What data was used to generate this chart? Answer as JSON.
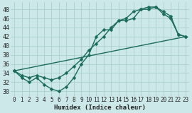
{
  "xlabel": "Humidex (Indice chaleur)",
  "background_color": "#cce8e8",
  "grid_color": "#aacfcf",
  "line_color": "#1a6b5a",
  "xlim": [
    -0.5,
    23.5
  ],
  "ylim": [
    29.0,
    49.5
  ],
  "yticks": [
    30,
    32,
    34,
    36,
    38,
    40,
    42,
    44,
    46,
    48
  ],
  "xticks": [
    0,
    1,
    2,
    3,
    4,
    5,
    6,
    7,
    8,
    9,
    10,
    11,
    12,
    13,
    14,
    15,
    16,
    17,
    18,
    19,
    20,
    21,
    22,
    23
  ],
  "series1_y": [
    34.5,
    33.0,
    32.0,
    33.0,
    31.5,
    30.5,
    30.0,
    31.0,
    33.0,
    36.0,
    38.0,
    42.0,
    43.5,
    43.5,
    45.5,
    45.5,
    46.0,
    48.0,
    48.0,
    48.5,
    47.0,
    46.0,
    42.5,
    42.0
  ],
  "series2_y": [
    34.5,
    33.5,
    33.0,
    33.5,
    33.0,
    32.5,
    33.0,
    34.0,
    35.5,
    37.0,
    39.0,
    40.5,
    42.0,
    44.0,
    45.5,
    46.0,
    47.5,
    48.0,
    48.5,
    48.5,
    47.5,
    46.5,
    42.5,
    42.0
  ],
  "series3_y": [
    34.5,
    42.0
  ],
  "series3_x": [
    0,
    23
  ],
  "marker_size": 2.5,
  "linewidth": 1.0
}
